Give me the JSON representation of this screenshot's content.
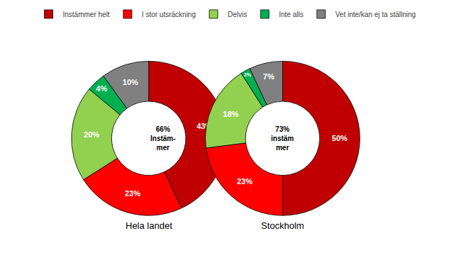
{
  "chart_data": [
    {
      "type": "pie",
      "title": "Hela landet",
      "categories": [
        "Instämmer helt",
        "I stor utsräckning",
        "Delvis",
        "Inte alls",
        "Vet inte/kan ej ta ställning"
      ],
      "values": [
        43,
        23,
        20,
        4,
        10
      ],
      "value_labels": [
        "43%",
        "23%",
        "20%",
        "4%",
        "10%"
      ],
      "colors": [
        "#c00000",
        "#ff0000",
        "#92d050",
        "#00b050",
        "#808080"
      ],
      "annotation": [
        "66%",
        "Instäm-",
        "mer"
      ],
      "data_labels": true,
      "legend": "top"
    },
    {
      "type": "pie",
      "title": "Stockholm",
      "categories": [
        "Instämmer helt",
        "I stor utsräckning",
        "Delvis",
        "Inte alls",
        "Vet inte/kan ej ta ställning"
      ],
      "values": [
        50,
        23,
        18,
        2,
        7
      ],
      "value_labels": [
        "50%",
        "23%",
        "18%",
        "2%",
        "7%"
      ],
      "colors": [
        "#c00000",
        "#ff0000",
        "#92d050",
        "#00b050",
        "#808080"
      ],
      "annotation": [
        "73%",
        "instäm",
        "mer"
      ],
      "data_labels": true,
      "legend": "top"
    }
  ]
}
